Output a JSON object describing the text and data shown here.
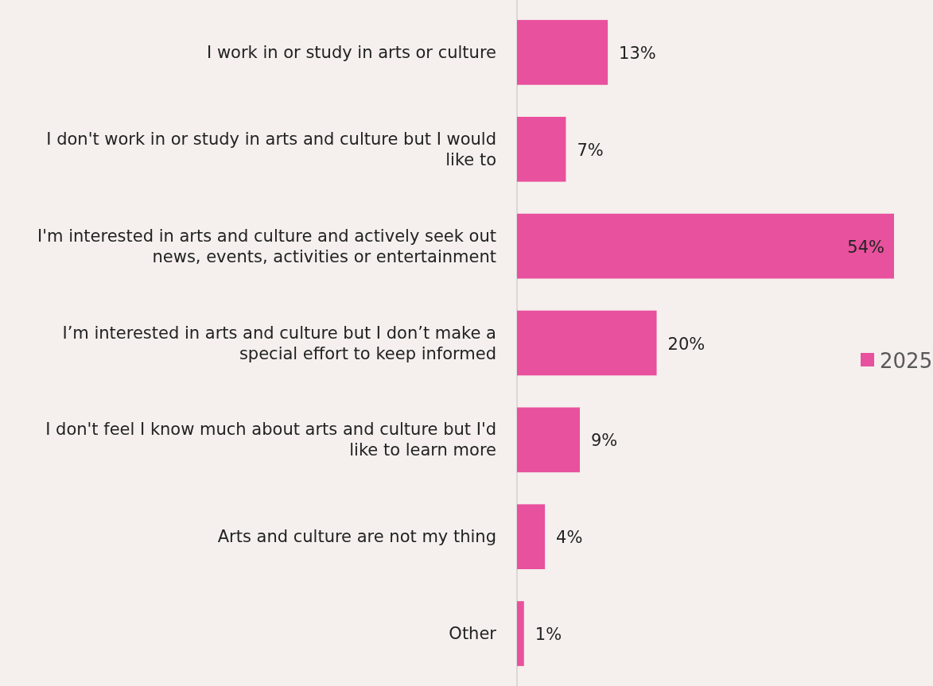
{
  "chart_data": {
    "type": "bar",
    "orientation": "horizontal",
    "legend": "right",
    "categories": [
      "I work in or study in arts or culture",
      "I don't work in or study in arts and culture but I would like to",
      "I'm interested in arts and culture and actively seek out news, events, activities or entertainment",
      "I’m interested in arts and culture but I don’t make a special effort to keep informed",
      "I don't feel I know much about arts and culture but I'd like to learn more",
      "Arts and culture are not my thing",
      "Other"
    ],
    "series": [
      {
        "name": "2025",
        "color": "#e8519d",
        "values": [
          13,
          7,
          54,
          20,
          9,
          4,
          1
        ],
        "value_labels": [
          "13%",
          "7%",
          "54%",
          "20%",
          "9%",
          "4%",
          "1%"
        ]
      }
    ]
  }
}
